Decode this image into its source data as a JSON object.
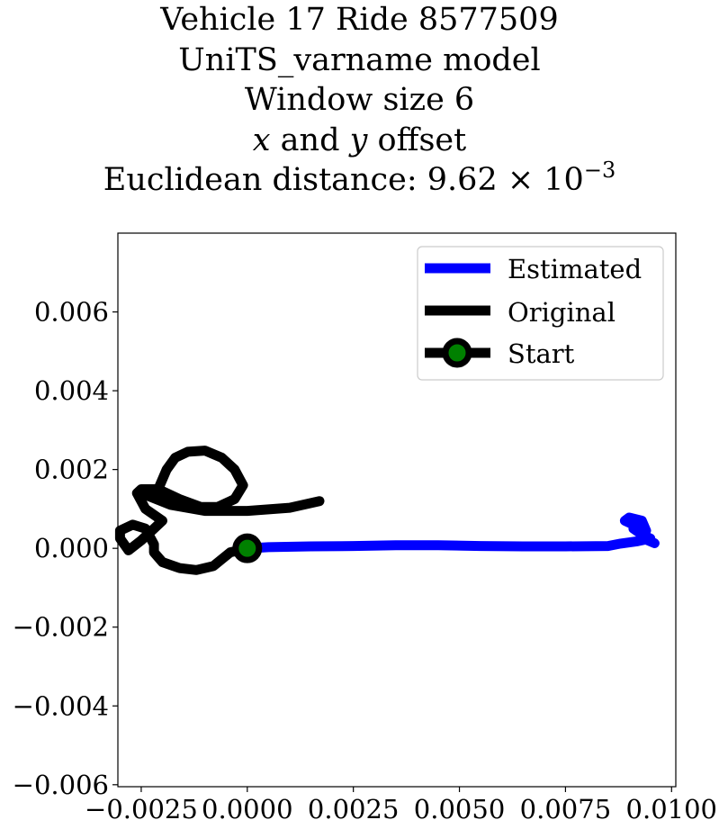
{
  "chart_data": {
    "type": "line",
    "title_lines": {
      "line1": "Vehicle 17 Ride 8577509",
      "line2": "UniTS_varname model",
      "line3": "Window size 6",
      "line4_x": "x",
      "line4_and": " and ",
      "line4_y": "y",
      "line4_rest": " offset",
      "line5_prefix": "Euclidean distance: 9.62 × 10",
      "line5_exp": "−3"
    },
    "xlim": [
      -0.00305,
      0.0101
    ],
    "ylim": [
      -0.00605,
      0.008
    ],
    "xticks": [
      {
        "value": -0.0025,
        "label": "−0.0025"
      },
      {
        "value": 0.0,
        "label": "0.0000"
      },
      {
        "value": 0.0025,
        "label": "0.0025"
      },
      {
        "value": 0.005,
        "label": "0.0050"
      },
      {
        "value": 0.0075,
        "label": "0.0075"
      },
      {
        "value": 0.01,
        "label": "0.0100"
      }
    ],
    "yticks": [
      {
        "value": 0.006,
        "label": "0.006"
      },
      {
        "value": 0.004,
        "label": "0.004"
      },
      {
        "value": 0.002,
        "label": "0.002"
      },
      {
        "value": 0.0,
        "label": "0.000"
      },
      {
        "value": -0.002,
        "label": "−0.002"
      },
      {
        "value": -0.004,
        "label": "−0.004"
      },
      {
        "value": -0.006,
        "label": "−0.006"
      }
    ],
    "grid": false,
    "legend_position": "upper-right",
    "series": [
      {
        "name": "Estimated",
        "color": "#0000ff",
        "x": [
          0.0,
          0.0005,
          0.0015,
          0.0025,
          0.0035,
          0.0045,
          0.0055,
          0.0065,
          0.0075,
          0.0085,
          0.0088,
          0.0092,
          0.0095,
          0.0093,
          0.0091,
          0.0092,
          0.0094,
          0.0093,
          0.009,
          0.0089,
          0.0091,
          0.0093,
          0.0094,
          0.0096
        ],
        "y": [
          0.0,
          3e-05,
          5e-05,
          6e-05,
          8e-05,
          8e-05,
          6e-05,
          5e-05,
          5e-05,
          6e-05,
          0.00012,
          0.00018,
          0.00025,
          0.00035,
          0.0005,
          0.0006,
          0.00045,
          0.0007,
          0.00078,
          0.0007,
          0.0006,
          0.0004,
          0.00022,
          0.00013
        ]
      },
      {
        "name": "Original",
        "color": "#000000",
        "x": [
          0.0,
          -0.0004,
          -0.0008,
          -0.0012,
          -0.0016,
          -0.002,
          -0.0022,
          -0.0022,
          -0.0024,
          -0.0027,
          -0.003,
          -0.003,
          -0.0028,
          -0.0025,
          -0.0022,
          -0.002,
          -0.0024,
          -0.0026,
          -0.0025,
          -0.0021,
          -0.0019,
          -0.0017,
          -0.0014,
          -0.001,
          -0.0006,
          -0.0003,
          -0.0001,
          -0.0003,
          -0.0007,
          -0.0011,
          -0.0016,
          -0.0021,
          -0.0025,
          -0.0018,
          -0.001,
          0.0,
          0.001,
          0.0017
        ],
        "y": [
          0.0,
          -0.0001,
          -0.00045,
          -0.00055,
          -0.0005,
          -0.00035,
          -0.0001,
          0.0001,
          0.0005,
          0.0006,
          0.00045,
          0.00025,
          -5e-05,
          0.0002,
          0.0005,
          0.0007,
          0.001,
          0.0014,
          0.0015,
          0.0015,
          0.002,
          0.0023,
          0.00245,
          0.00248,
          0.0023,
          0.002,
          0.0016,
          0.00125,
          0.00105,
          0.00105,
          0.00125,
          0.0015,
          0.0014,
          0.0011,
          0.00095,
          0.00095,
          0.00103,
          0.0012
        ]
      }
    ],
    "legend": {
      "estimated_label": "Estimated",
      "original_label": "Original",
      "start_label": "Start"
    },
    "start_point": {
      "x": 0.0,
      "y": 0.0,
      "marker_color": "#008000",
      "edge_color": "#000000"
    }
  }
}
